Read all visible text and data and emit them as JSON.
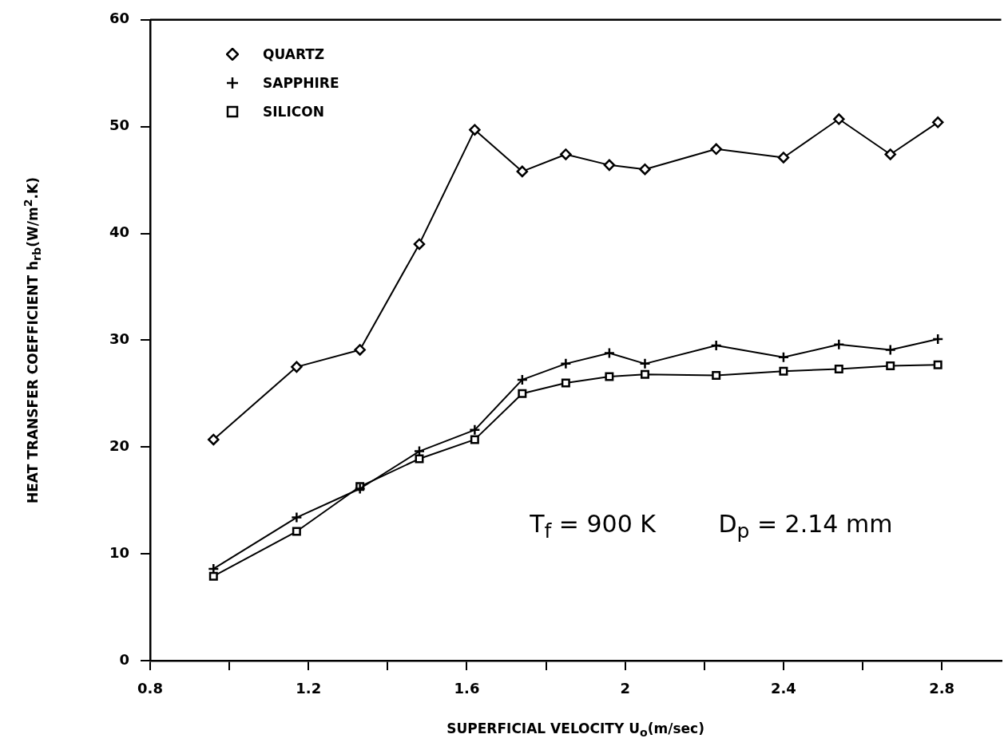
{
  "chart_data": {
    "type": "line",
    "xlabel": "SUPERFICIAL VELOCITY U$_{o}$(m/sec)",
    "ylabel": "HEAT TRANSFER COEFFICIENT   h$_{rb}$(W/m$^{2}$.K)",
    "x": [
      0.96,
      1.17,
      1.33,
      1.48,
      1.62,
      1.74,
      1.85,
      1.96,
      2.05,
      2.23,
      2.4,
      2.54,
      2.67,
      2.79
    ],
    "series": [
      {
        "name": "QUARTZ",
        "color": "#000000",
        "marker": "diamond",
        "values": [
          20.7,
          27.5,
          29.1,
          39.0,
          49.7,
          45.8,
          47.4,
          46.4,
          46.0,
          47.9,
          47.1,
          50.7,
          47.4,
          50.4
        ]
      },
      {
        "name": "SAPPHIRE",
        "color": "#000000",
        "marker": "cross",
        "values": [
          8.6,
          13.4,
          16.1,
          19.6,
          21.6,
          26.3,
          27.8,
          28.8,
          27.8,
          29.5,
          28.4,
          29.6,
          29.1,
          30.1
        ]
      },
      {
        "name": "SILICON",
        "color": "#000000",
        "marker": "square",
        "values": [
          7.9,
          12.1,
          16.3,
          18.9,
          20.7,
          25.0,
          26.0,
          26.6,
          26.8,
          26.7,
          27.1,
          27.3,
          27.6,
          27.7
        ]
      }
    ],
    "xlim": [
      0.8,
      2.95
    ],
    "xticks": [
      0.8,
      {
        "value": 1.0,
        "label": null
      },
      1.2,
      {
        "value": 1.4,
        "label": null
      },
      1.6,
      {
        "value": 1.8,
        "label": null
      },
      2,
      {
        "value": 2.2,
        "label": null
      },
      2.4,
      {
        "value": 2.6,
        "label": null
      },
      2.8
    ],
    "ylim": [
      0,
      60
    ],
    "yticks": [
      0,
      10,
      20,
      30,
      40,
      50,
      60
    ],
    "grid": false,
    "legend": "top left",
    "line_style": "solid",
    "annotations": [
      "T$_{f}$ = 900 K",
      "D$_{p}$ = 2.14 mm"
    ]
  }
}
